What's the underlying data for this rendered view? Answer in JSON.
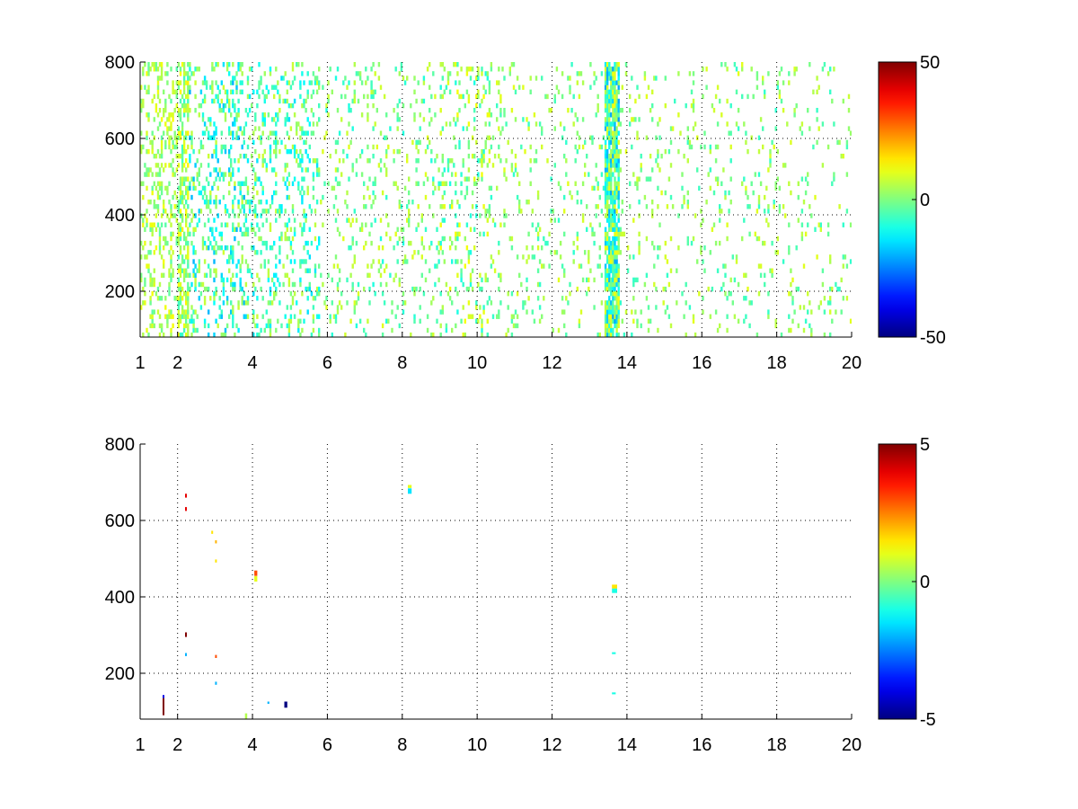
{
  "chart_data": [
    {
      "type": "heatmap",
      "title": "",
      "xlabel": "",
      "ylabel": "",
      "xlim": [
        1,
        20
      ],
      "ylim": [
        80,
        800
      ],
      "grid": true,
      "x_ticks": [
        1,
        2,
        4,
        6,
        8,
        10,
        12,
        14,
        16,
        18,
        20
      ],
      "y_ticks": [
        200,
        400,
        600,
        800
      ],
      "colormap": "jet",
      "colorbar": {
        "range": [
          -50,
          50
        ],
        "ticks": [
          -50,
          0,
          50
        ],
        "placement": "right"
      },
      "density_regions": [
        {
          "x": [
            1.0,
            2.0
          ],
          "density": 0.28,
          "v": [
            -4,
            12
          ]
        },
        {
          "x": [
            2.0,
            2.3
          ],
          "density": 0.55,
          "v": [
            -8,
            14
          ]
        },
        {
          "x": [
            2.3,
            3.8
          ],
          "density": 0.24,
          "v": [
            -20,
            8
          ]
        },
        {
          "x": [
            3.8,
            5.8
          ],
          "density": 0.2,
          "v": [
            -16,
            8
          ]
        },
        {
          "x": [
            5.8,
            9.0
          ],
          "density": 0.11,
          "v": [
            -10,
            10
          ]
        },
        {
          "x": [
            9.0,
            10.4
          ],
          "density": 0.16,
          "v": [
            -10,
            12
          ]
        },
        {
          "x": [
            10.4,
            13.4
          ],
          "density": 0.09,
          "v": [
            -8,
            10
          ]
        },
        {
          "x": [
            13.4,
            13.8
          ],
          "density": 0.85,
          "v": [
            -22,
            12
          ]
        },
        {
          "x": [
            13.8,
            20.0
          ],
          "density": 0.07,
          "v": [
            -8,
            10
          ]
        }
      ]
    },
    {
      "type": "heatmap",
      "title": "",
      "xlabel": "",
      "ylabel": "",
      "xlim": [
        1,
        20
      ],
      "ylim": [
        80,
        800
      ],
      "grid": true,
      "x_ticks": [
        1,
        2,
        4,
        6,
        8,
        10,
        12,
        14,
        16,
        18,
        20
      ],
      "y_ticks": [
        200,
        400,
        600,
        800
      ],
      "colormap": "jet",
      "colorbar": {
        "range": [
          -5,
          5
        ],
        "ticks": [
          -5,
          0,
          5
        ],
        "placement": "right"
      },
      "points": [
        {
          "x": 1.6,
          "y": 90,
          "w": 0.03,
          "h": 45,
          "v": 5
        },
        {
          "x": 1.6,
          "y": 135,
          "w": 0.03,
          "h": 8,
          "v": -4
        },
        {
          "x": 2.2,
          "y": 625,
          "w": 0.03,
          "h": 10,
          "v": 4
        },
        {
          "x": 2.2,
          "y": 660,
          "w": 0.03,
          "h": 10,
          "v": 4
        },
        {
          "x": 2.2,
          "y": 295,
          "w": 0.03,
          "h": 12,
          "v": 5
        },
        {
          "x": 2.2,
          "y": 245,
          "w": 0.03,
          "h": 8,
          "v": -2
        },
        {
          "x": 2.9,
          "y": 565,
          "w": 0.03,
          "h": 8,
          "v": 1.5
        },
        {
          "x": 3.0,
          "y": 540,
          "w": 0.03,
          "h": 8,
          "v": 2
        },
        {
          "x": 3.0,
          "y": 490,
          "w": 0.03,
          "h": 8,
          "v": 1.5
        },
        {
          "x": 3.0,
          "y": 240,
          "w": 0.03,
          "h": 8,
          "v": 3
        },
        {
          "x": 3.0,
          "y": 170,
          "w": 0.03,
          "h": 8,
          "v": -2
        },
        {
          "x": 4.05,
          "y": 455,
          "w": 0.08,
          "h": 14,
          "v": 3
        },
        {
          "x": 4.05,
          "y": 440,
          "w": 0.08,
          "h": 14,
          "v": 1
        },
        {
          "x": 3.8,
          "y": 80,
          "w": 0.06,
          "h": 15,
          "v": 0.5
        },
        {
          "x": 4.4,
          "y": 120,
          "w": 0.05,
          "h": 6,
          "v": -2
        },
        {
          "x": 4.85,
          "y": 110,
          "w": 0.08,
          "h": 16,
          "v": -5
        },
        {
          "x": 8.15,
          "y": 670,
          "w": 0.1,
          "h": 14,
          "v": -1.5
        },
        {
          "x": 8.15,
          "y": 685,
          "w": 0.1,
          "h": 8,
          "v": 1
        },
        {
          "x": 13.6,
          "y": 410,
          "w": 0.14,
          "h": 12,
          "v": -1
        },
        {
          "x": 13.6,
          "y": 422,
          "w": 0.14,
          "h": 10,
          "v": 1.5
        },
        {
          "x": 13.6,
          "y": 250,
          "w": 0.1,
          "h": 5,
          "v": -1
        },
        {
          "x": 13.6,
          "y": 145,
          "w": 0.1,
          "h": 5,
          "v": -1
        }
      ]
    }
  ]
}
